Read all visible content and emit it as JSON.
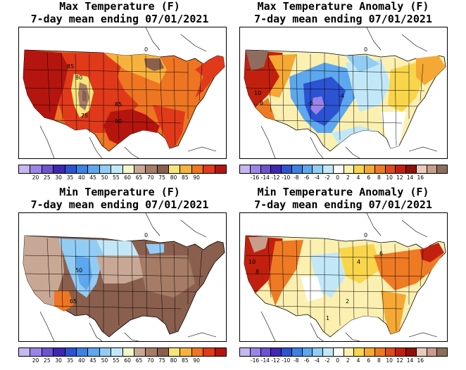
{
  "panels": [
    {
      "title_line1": "Max Temperature (F)",
      "title_line2": "7-day mean ending 07/01/2021",
      "scale": "abs",
      "labels": [
        "85",
        "80",
        "75",
        "85",
        "90",
        "0"
      ]
    },
    {
      "title_line1": "Max Temperature Anomaly (F)",
      "title_line2": "7-day mean ending 07/01/2021",
      "scale": "anom",
      "labels": [
        "10",
        "8",
        "0",
        "-6",
        "-4"
      ]
    },
    {
      "title_line1": "Min Temperature (F)",
      "title_line2": "7-day mean ending 07/01/2021",
      "scale": "abs",
      "labels": [
        "50",
        "65",
        "0"
      ]
    },
    {
      "title_line1": "Min Temperature Anomaly (F)",
      "title_line2": "7-day mean ending 07/01/2021",
      "scale": "anom",
      "labels": [
        "10",
        "8",
        "0",
        "2",
        "4",
        "6",
        "1"
      ]
    }
  ],
  "colorbars": {
    "abs": {
      "colors": [
        "#c6b7f1",
        "#9a84e7",
        "#6f52cf",
        "#3f27b1",
        "#2c53d2",
        "#3d81e3",
        "#5da7ee",
        "#91ccf4",
        "#c2e8f8",
        "#f2f6c9",
        "#c8a895",
        "#a67c66",
        "#8a5f4d",
        "#f8e57a",
        "#f7b23d",
        "#ee7522",
        "#e03a1a",
        "#b5150f"
      ],
      "ticks": [
        "20",
        "25",
        "30",
        "35",
        "40",
        "45",
        "50",
        "55",
        "60",
        "65",
        "70",
        "75",
        "80",
        "85",
        "90"
      ]
    },
    "anom": {
      "colors": [
        "#c6b7f1",
        "#9a84e7",
        "#6f52cf",
        "#3f27b1",
        "#2c53d2",
        "#3d81e3",
        "#5da7ee",
        "#91ccf4",
        "#c2e8f8",
        "#ffffff",
        "#fbf0b0",
        "#f8d54a",
        "#f5a833",
        "#ee7a24",
        "#e04a1a",
        "#c2200f",
        "#8e1208",
        "#e9c9bd",
        "#c79d8c",
        "#8e6d5e"
      ],
      "ticks": [
        "-16",
        "-14",
        "-12",
        "-10",
        "-8",
        "-6",
        "-4",
        "-2",
        "0",
        "2",
        "4",
        "6",
        "8",
        "10",
        "12",
        "14",
        "16"
      ]
    }
  }
}
